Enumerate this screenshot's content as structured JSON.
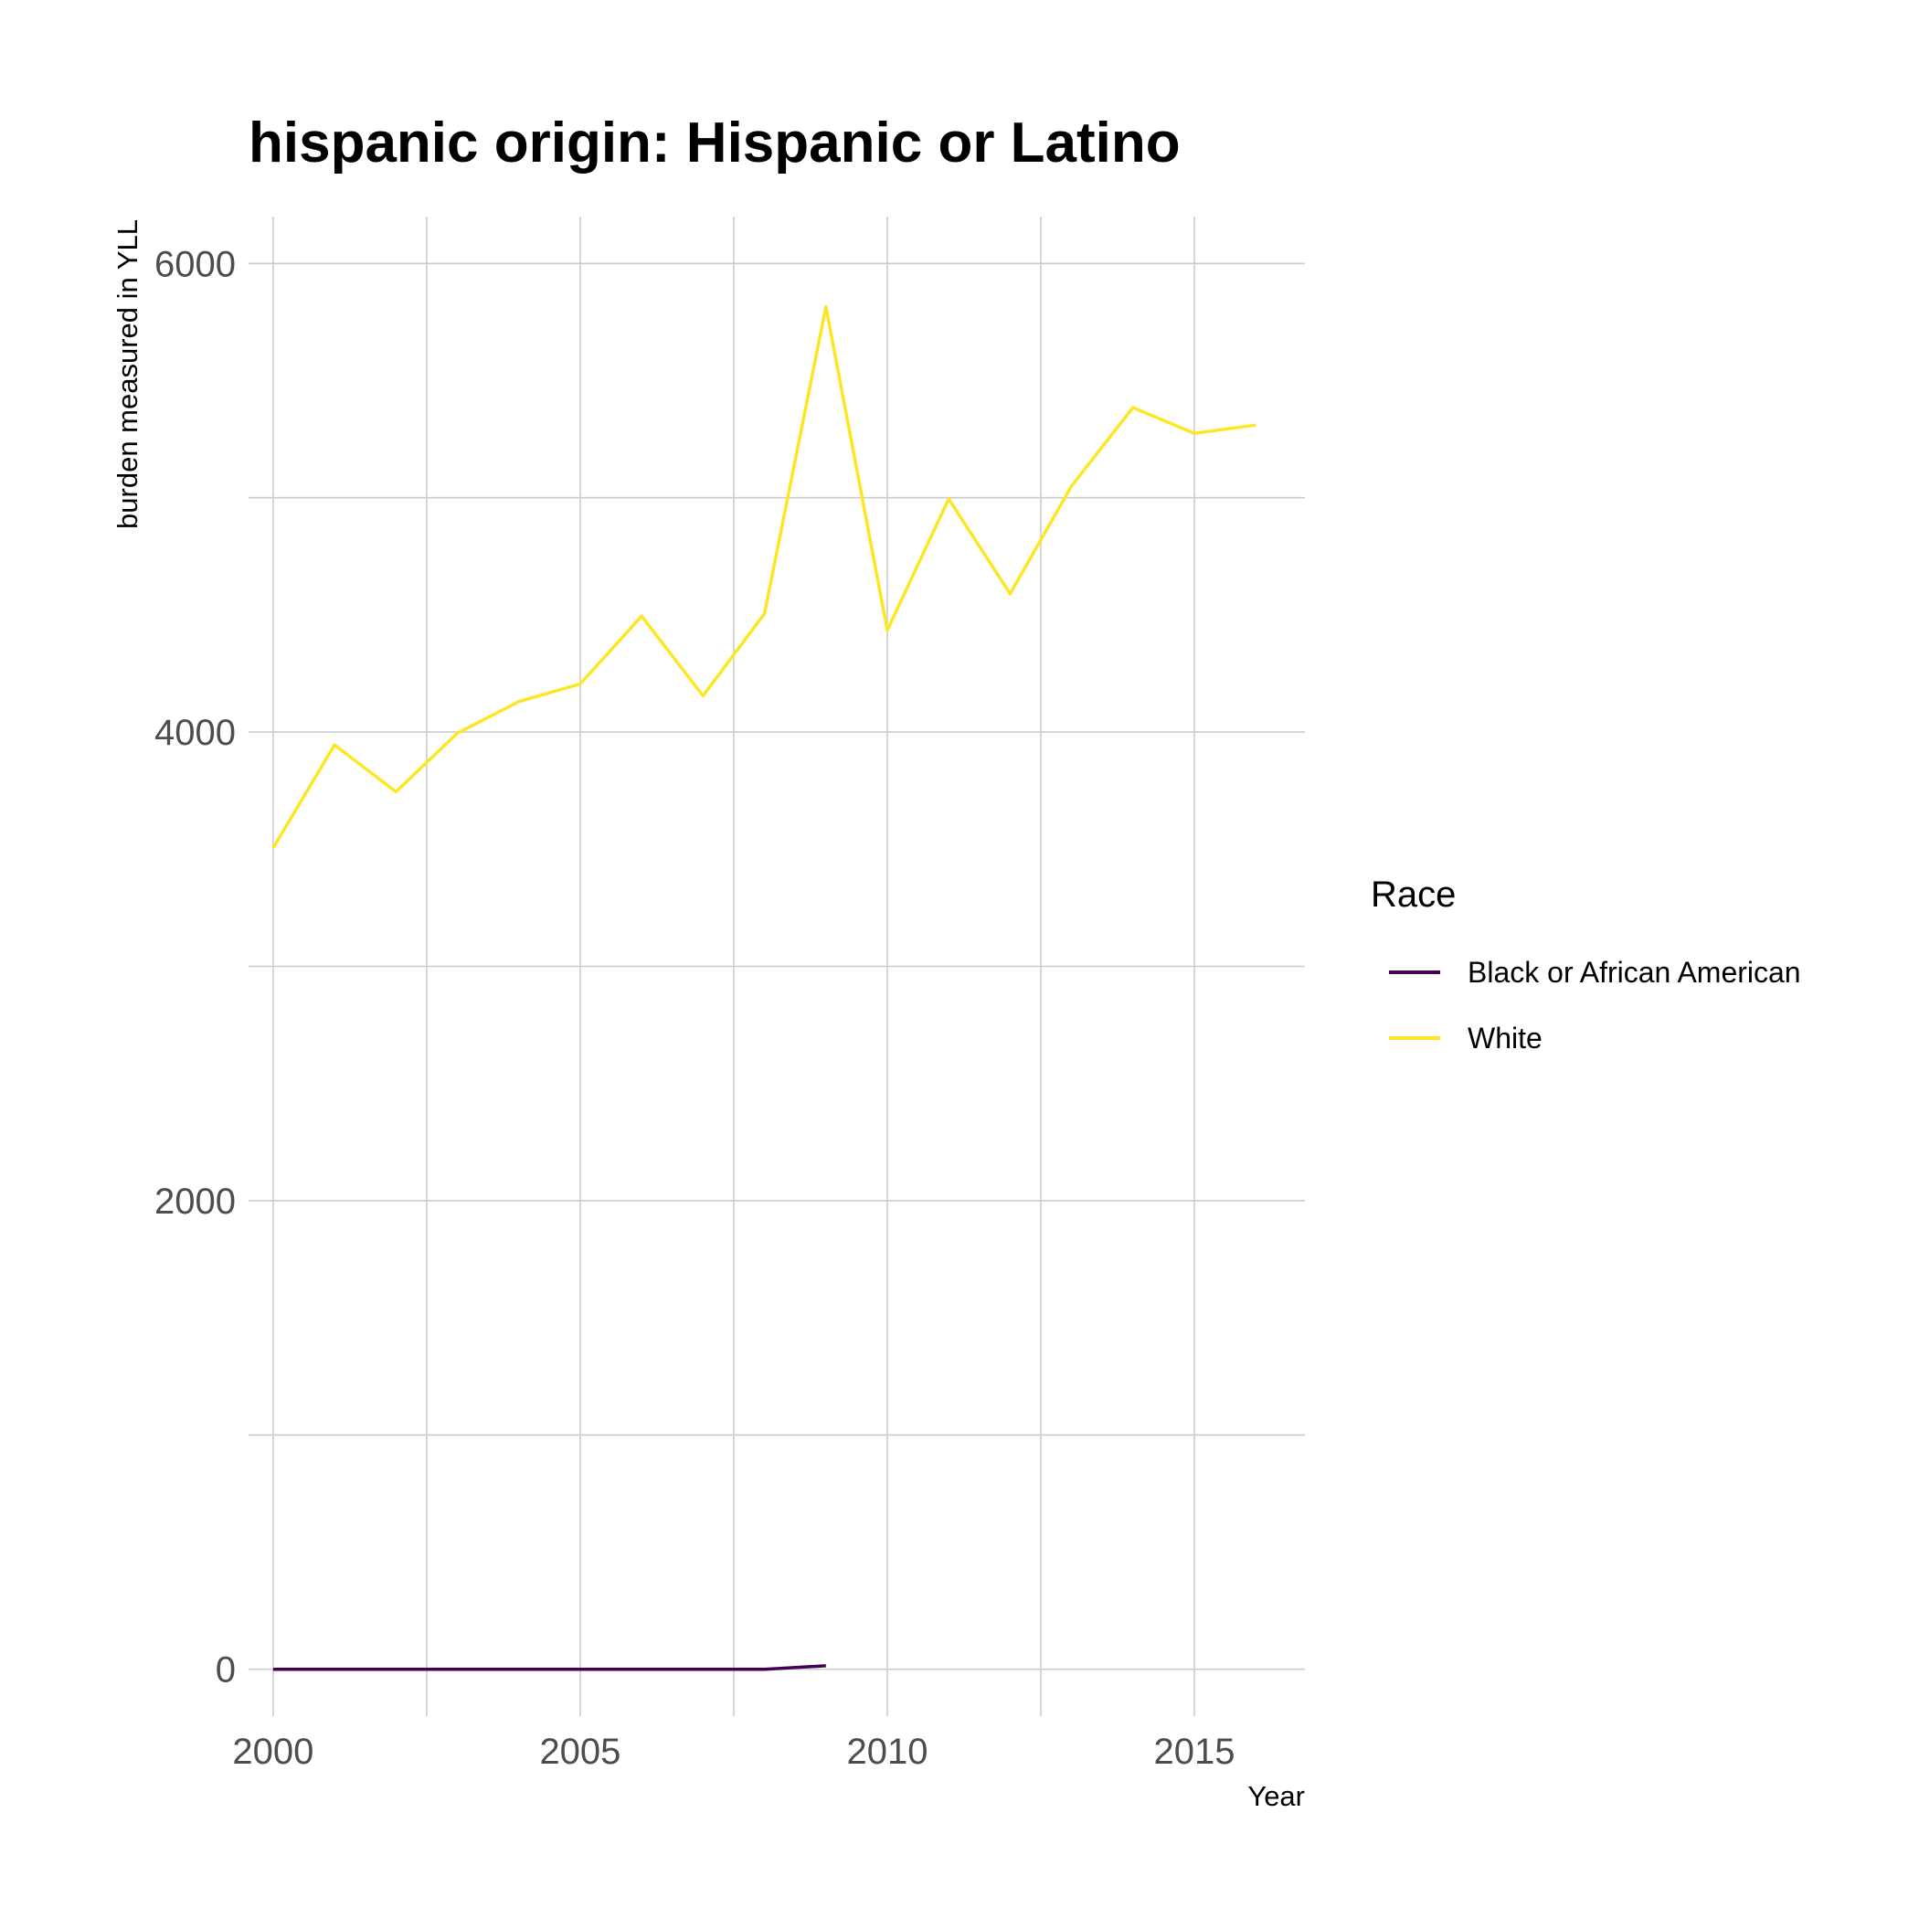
{
  "chart_data": {
    "type": "line",
    "title": "hispanic origin: Hispanic or Latino",
    "xlabel": "Year",
    "ylabel": "burden measured in YLL",
    "xlim": [
      1999.6,
      2016.8
    ],
    "ylim": [
      -200,
      6200
    ],
    "x_ticks": [
      2000,
      2005,
      2010,
      2015
    ],
    "y_ticks": [
      0,
      2000,
      4000,
      6000
    ],
    "x_minor": [
      2002.5,
      2007.5,
      2012.5
    ],
    "y_minor": [
      1000,
      3000,
      5000
    ],
    "grid": true,
    "legend": {
      "title": "Race",
      "position": "right"
    },
    "series": [
      {
        "name": "Black or African American",
        "color": "#440154",
        "x": [
          2000,
          2001,
          2002,
          2003,
          2004,
          2005,
          2006,
          2007,
          2008,
          2009
        ],
        "values": [
          0,
          0,
          0,
          0,
          0,
          0,
          0,
          0,
          0,
          15
        ]
      },
      {
        "name": "White",
        "color": "#FDE725",
        "x": [
          2000,
          2001,
          2002,
          2003,
          2004,
          2005,
          2006,
          2007,
          2008,
          2009,
          2010,
          2011,
          2012,
          2013,
          2014,
          2015,
          2016
        ],
        "values": [
          3505,
          3945,
          3745,
          3995,
          4130,
          4205,
          4495,
          4155,
          4505,
          5815,
          4435,
          4995,
          4590,
          5050,
          5385,
          5275,
          5310
        ]
      }
    ]
  }
}
